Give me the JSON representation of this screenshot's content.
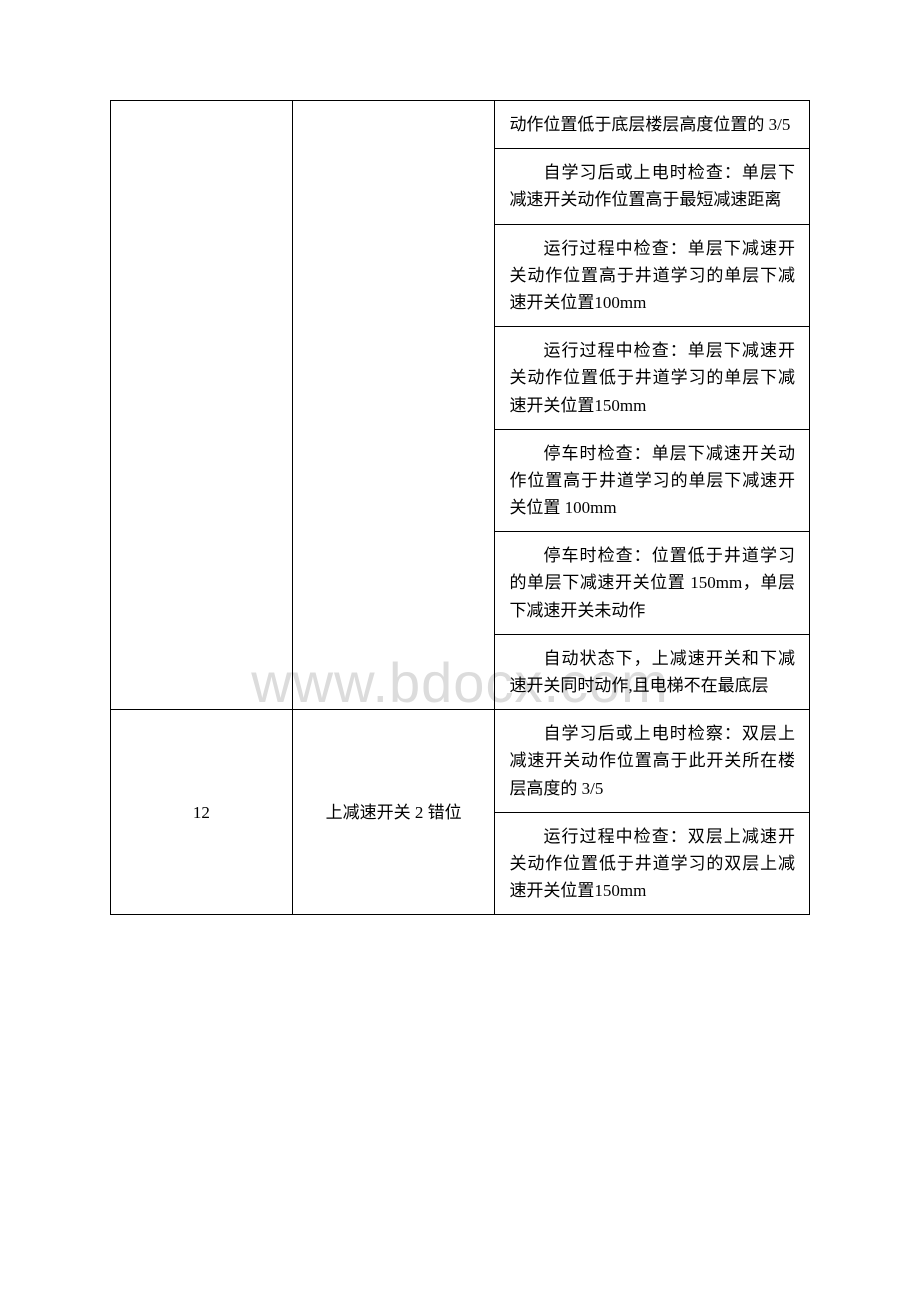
{
  "watermark": "www.bdocx.com",
  "rows": [
    {
      "col1": "",
      "col2": "",
      "cells": [
        "动作位置低于底层楼层高度位置的 3/5",
        "自学习后或上电时检查：单层下减速开关动作位置高于最短减速距离",
        "运行过程中检查：单层下减速开关动作位置高于井道学习的单层下减速开关位置100mm",
        "运行过程中检查：单层下减速开关动作位置低于井道学习的单层下减速开关位置150mm",
        "停车时检查：单层下减速开关动作位置高于井道学习的单层下减速开关位置 100mm",
        "停车时检查：位置低于井道学习的单层下减速开关位置 150mm，单层下减速开关未动作",
        "自动状态下，上减速开关和下减速开关同时动作,且电梯不在最底层"
      ]
    },
    {
      "col1": "12",
      "col2": "上减速开关 2 错位",
      "cells": [
        "自学习后或上电时检察：双层上减速开关动作位置高于此开关所在楼层高度的 3/5",
        "运行过程中检查：双层上减速开关动作位置低于井道学习的双层上减速开关位置150mm"
      ]
    }
  ]
}
